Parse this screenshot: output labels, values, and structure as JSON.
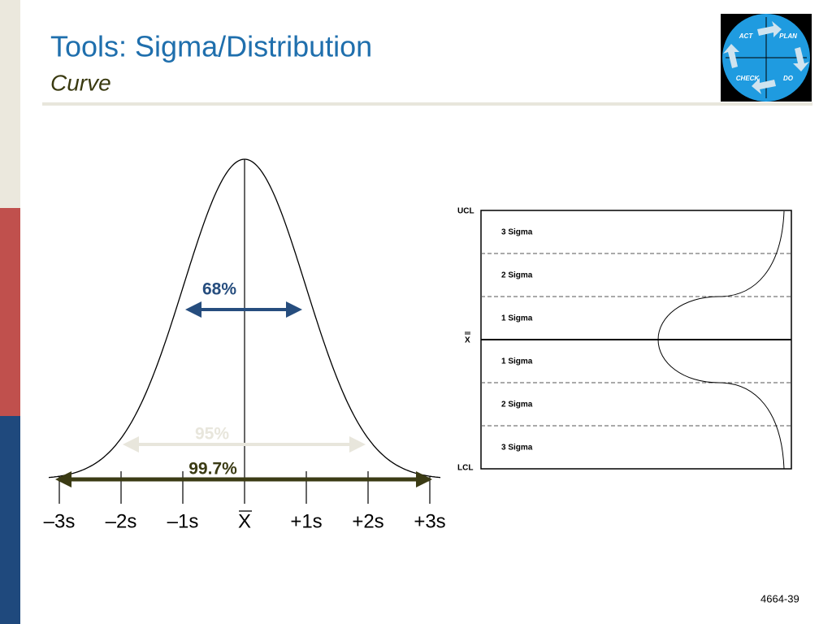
{
  "header": {
    "title": "Tools: Sigma/Distribution",
    "subtitle": "Curve"
  },
  "logo": {
    "labels": [
      "ACT",
      "PLAN",
      "CHECK",
      "DO"
    ]
  },
  "bell_curve": {
    "spans": [
      "68%",
      "95%",
      "99.7%"
    ],
    "axis_labels": [
      "–3s",
      "–2s",
      "–1s",
      "X",
      "+1s",
      "+2s",
      "+3s"
    ]
  },
  "control_chart": {
    "limits": [
      "UCL",
      "X",
      "LCL"
    ],
    "zones": [
      "3 Sigma",
      "2 Sigma",
      "1 Sigma",
      "1 Sigma",
      "2 Sigma",
      "3 Sigma"
    ]
  },
  "footer": {
    "slide_id": "4664-39"
  }
}
